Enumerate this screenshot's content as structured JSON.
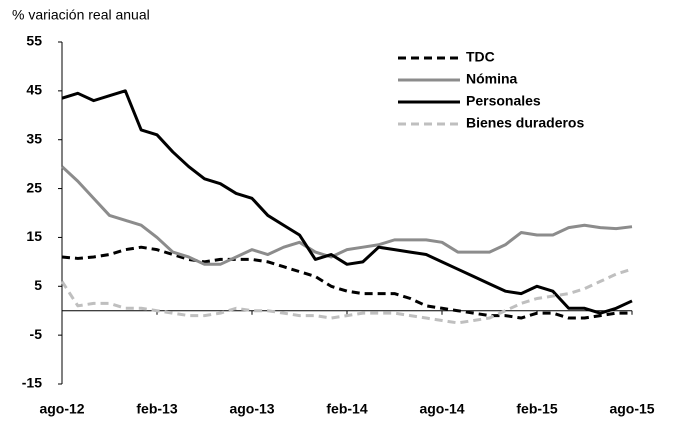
{
  "chart_data": {
    "type": "line",
    "y_label": "% variación real anual",
    "categories": [
      "ago-12",
      null,
      null,
      null,
      null,
      null,
      "feb-13",
      null,
      null,
      null,
      null,
      null,
      "ago-13",
      null,
      null,
      null,
      null,
      null,
      "feb-14",
      null,
      null,
      null,
      null,
      null,
      "ago-14",
      null,
      null,
      null,
      null,
      null,
      "feb-15",
      null,
      null,
      null,
      null,
      null,
      "ago-15"
    ],
    "ylim": [
      -15,
      55
    ],
    "yticks": [
      -15,
      -5,
      5,
      15,
      25,
      35,
      45,
      55
    ],
    "grid": false,
    "legend": "top-right",
    "series": [
      {
        "name": "TDC",
        "color": "#000000",
        "dash": "dashed",
        "values": [
          11,
          10.7,
          11,
          11.5,
          12.5,
          13,
          12.5,
          11.5,
          10.5,
          10,
          10.5,
          10.5,
          10.5,
          10,
          9,
          8,
          7,
          5,
          4,
          3.5,
          3.5,
          3.5,
          2.5,
          1,
          0.5,
          0,
          -0.5,
          -1,
          -1,
          -1.5,
          -0.5,
          -0.5,
          -1.5,
          -1.5,
          -1,
          -0.5,
          -0.5
        ]
      },
      {
        "name": "Nómina",
        "color": "#8c8c8c",
        "dash": "solid",
        "values": [
          29.5,
          26.5,
          23,
          19.5,
          18.5,
          17.5,
          15,
          12,
          11,
          9.5,
          9.5,
          11,
          12.5,
          11.5,
          13,
          14,
          12,
          11,
          12.5,
          13,
          13.5,
          14.5,
          14.5,
          14.5,
          14,
          12,
          12,
          12,
          13.5,
          16,
          15.5,
          15.5,
          17,
          17.5,
          17,
          16.8,
          17.2
        ]
      },
      {
        "name": "Personales",
        "color": "#000000",
        "dash": "solid",
        "values": [
          43.5,
          44.5,
          43,
          44,
          45,
          37,
          36,
          32.5,
          29.5,
          27,
          26,
          24,
          23,
          19.5,
          17.5,
          15.5,
          10.5,
          11.5,
          9.5,
          10,
          13,
          12.5,
          12,
          11.5,
          10,
          8.5,
          7,
          5.5,
          4,
          3.5,
          5,
          4,
          0.5,
          0.5,
          -0.5,
          0.5,
          2
        ]
      },
      {
        "name": "Bienes duraderos",
        "color": "#bfbfbf",
        "dash": "dashed",
        "values": [
          6,
          1,
          1.5,
          1.5,
          0.5,
          0.5,
          0,
          -0.5,
          -1,
          -1,
          -0.5,
          0.5,
          0,
          0,
          -0.5,
          -1,
          -1,
          -1.5,
          -1,
          -0.5,
          -0.5,
          -0.5,
          -1,
          -1.5,
          -2,
          -2.5,
          -2,
          -1.5,
          0,
          1.5,
          2.5,
          3,
          3.5,
          4.5,
          6,
          7.5,
          8.5
        ]
      }
    ]
  }
}
